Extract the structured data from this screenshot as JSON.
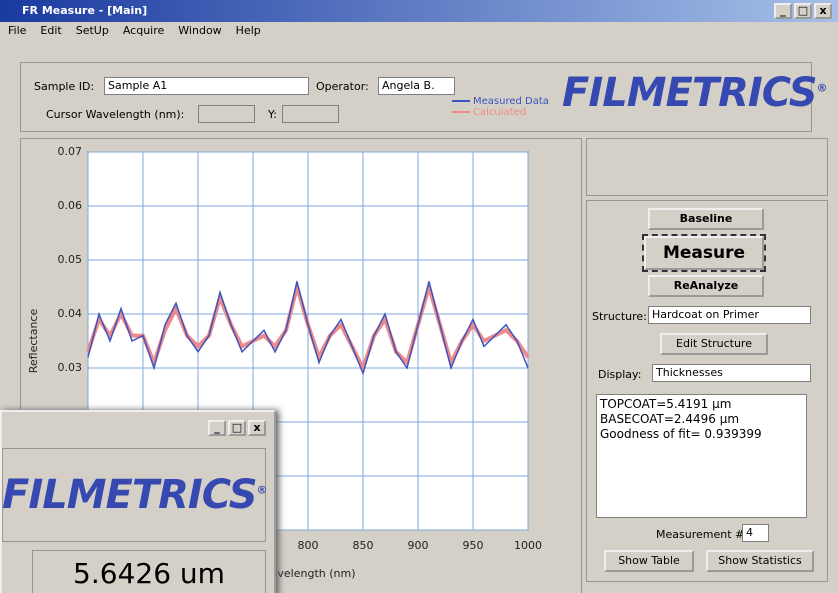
{
  "window": {
    "title": "FR Measure - [Main]",
    "menu": [
      "File",
      "Edit",
      "SetUp",
      "Acquire",
      "Window",
      "Help"
    ]
  },
  "header": {
    "sample_id_label": "Sample ID:",
    "sample_id": "Sample A1",
    "operator_label": "Operator:",
    "operator": "Angela B.",
    "cursor_wavelength_label": "Cursor Wavelength (nm):",
    "y_label": "Y:",
    "logo": "FILMETRICS",
    "logo_mark": "®"
  },
  "controls": {
    "baseline": "Baseline",
    "measure": "Measure",
    "reanalyze": "ReAnalyze",
    "structure_label": "Structure:",
    "structure": "Hardcoat on Primer",
    "edit_structure": "Edit Structure",
    "display_label": "Display:",
    "display": "Thicknesses",
    "results": [
      "TOPCOAT=5.4191 µm",
      "BASECOAT=2.4496 µm",
      "Goodness of fit= 0.939399"
    ],
    "measurement_label": "Measurement #:",
    "measurement": "4",
    "show_table": "Show Table",
    "show_statistics": "Show Statistics"
  },
  "overlay": {
    "logo": "FILMETRICS",
    "logo_mark": "®",
    "reading": "5.6426 um"
  },
  "chart_data": {
    "type": "line",
    "x_label": "Wavelength (nm)",
    "y_label": "Reflectance",
    "x": [
      600,
      610,
      620,
      630,
      640,
      650,
      660,
      670,
      680,
      690,
      700,
      710,
      720,
      730,
      740,
      750,
      760,
      770,
      780,
      790,
      800,
      810,
      820,
      830,
      840,
      850,
      860,
      870,
      880,
      890,
      900,
      910,
      920,
      930,
      940,
      950,
      960,
      970,
      980,
      990,
      1000
    ],
    "series": [
      {
        "name": "Calculated",
        "color": "#f08a8a",
        "values": [
          0.033,
          0.039,
          0.036,
          0.04,
          0.036,
          0.036,
          0.031,
          0.037,
          0.041,
          0.036,
          0.034,
          0.036,
          0.043,
          0.038,
          0.034,
          0.035,
          0.036,
          0.034,
          0.037,
          0.045,
          0.038,
          0.032,
          0.036,
          0.038,
          0.034,
          0.03,
          0.036,
          0.039,
          0.033,
          0.031,
          0.038,
          0.045,
          0.038,
          0.031,
          0.035,
          0.038,
          0.035,
          0.036,
          0.037,
          0.035,
          0.032
        ]
      },
      {
        "name": "Measured Data",
        "color": "#3a55c0",
        "values": [
          0.032,
          0.04,
          0.035,
          0.041,
          0.035,
          0.036,
          0.03,
          0.038,
          0.042,
          0.036,
          0.033,
          0.036,
          0.044,
          0.038,
          0.033,
          0.035,
          0.037,
          0.033,
          0.037,
          0.046,
          0.038,
          0.031,
          0.036,
          0.039,
          0.034,
          0.029,
          0.036,
          0.04,
          0.033,
          0.03,
          0.038,
          0.046,
          0.038,
          0.03,
          0.035,
          0.039,
          0.034,
          0.036,
          0.038,
          0.035,
          0.03
        ]
      }
    ],
    "xlim": [
      600,
      1000
    ],
    "xticks": [
      600,
      650,
      700,
      750,
      800,
      850,
      900,
      950,
      1000
    ],
    "ylim": [
      0,
      0.07
    ],
    "yticks": [
      0,
      0.01,
      0.02,
      0.03,
      0.04,
      0.05,
      0.06,
      0.07
    ],
    "grid": true
  }
}
